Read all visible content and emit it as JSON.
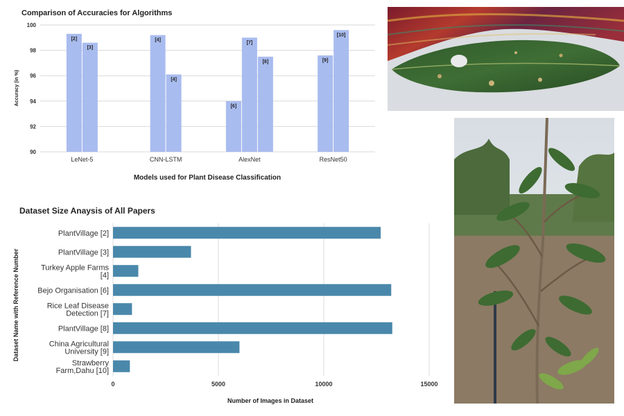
{
  "chart_data": [
    {
      "type": "bar",
      "title": "Comparison of Accuracies for Algorithms",
      "xlabel": "Models used for Plant Disease Classification",
      "ylabel": "Accuracy (in %)",
      "ylim": [
        90,
        100
      ],
      "yticks": [
        "90",
        "92",
        "94",
        "96",
        "98",
        "100"
      ],
      "grid": true,
      "color": "#a9bcef",
      "groups": [
        {
          "category": "LeNet-5",
          "bars": [
            {
              "ref": "[2]",
              "value": 99.3
            },
            {
              "ref": "[3]",
              "value": 98.6
            }
          ]
        },
        {
          "category": "CNN-LSTM",
          "bars": [
            {
              "ref": "[4]",
              "value": 99.2
            },
            {
              "ref": "[4]",
              "value": 96.1
            }
          ]
        },
        {
          "category": "AlexNet",
          "bars": [
            {
              "ref": "[6]",
              "value": 94.0
            },
            {
              "ref": "[7]",
              "value": 99.0
            },
            {
              "ref": "[8]",
              "value": 97.5
            }
          ]
        },
        {
          "category": "ResNet50",
          "bars": [
            {
              "ref": "[9]",
              "value": 97.6
            },
            {
              "ref": "[10]",
              "value": 99.6
            }
          ]
        }
      ]
    },
    {
      "type": "bar",
      "orientation": "horizontal",
      "title": "Dataset Size Anaysis of All Papers",
      "xlabel": "Number of Images in Dataset",
      "ylabel": "Dataset Name with Reference Number",
      "xlim": [
        0,
        15000
      ],
      "xticks": [
        "0",
        "5000",
        "10000",
        "15000"
      ],
      "grid": true,
      "color": "#4a88ab",
      "categories": [
        [
          "PlantVillage [2]"
        ],
        [
          "PlantVillage [3]"
        ],
        [
          "Turkey Apple Farms",
          "[4]"
        ],
        [
          "Bejo Organisation [6]"
        ],
        [
          "Rice Leaf Disease",
          "Detection [7]"
        ],
        [
          "PlantVillage [8]"
        ],
        [
          "China Agricultural",
          "University [9]"
        ],
        [
          "Strawberry",
          "Farm,Dahu [10]"
        ]
      ],
      "values": [
        12700,
        3700,
        1200,
        13200,
        900,
        13250,
        6000,
        800
      ]
    }
  ],
  "photos": [
    {
      "name": "mango-leaf-photo",
      "subject": "diseased mango leaf on woven cloth"
    },
    {
      "name": "mango-tree-photo",
      "subject": "young mango tree in field"
    }
  ]
}
